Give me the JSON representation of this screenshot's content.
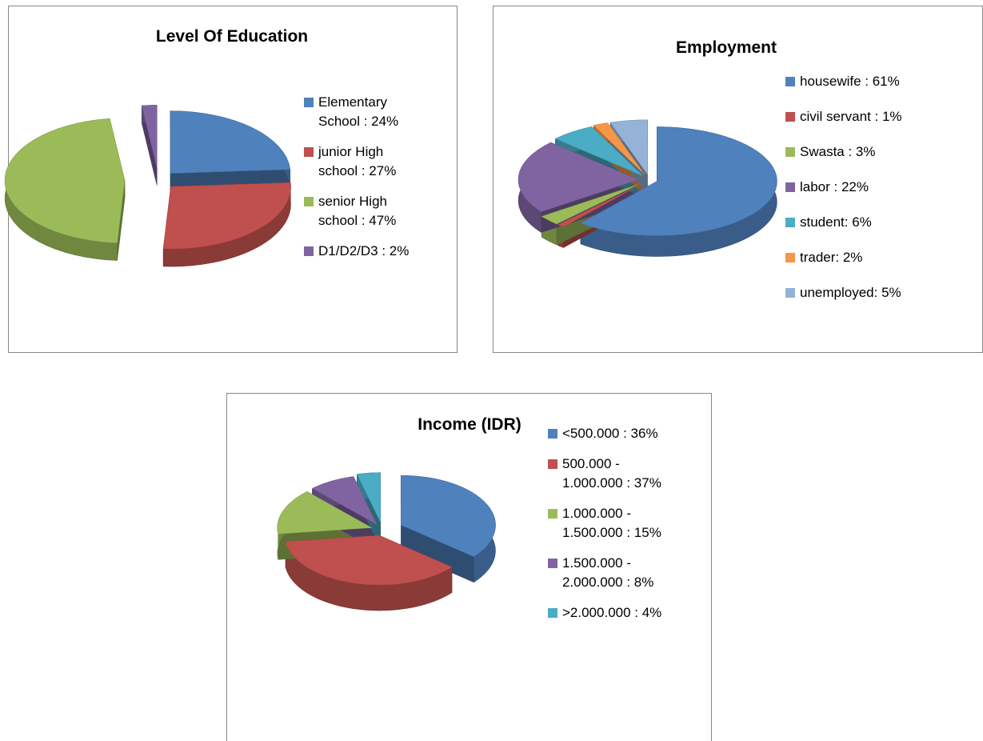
{
  "chart_data": [
    {
      "type": "pie",
      "title": "Level Of Education",
      "categories": [
        "Elementary School : 24%",
        "junior High school : 27%",
        "senior High school : 47%",
        "D1/D2/D3 : 2%"
      ],
      "values": [
        24,
        27,
        47,
        2
      ],
      "colors": [
        "#4f81bd",
        "#c0504d",
        "#9bbb59",
        "#8064a2"
      ],
      "legend": "right"
    },
    {
      "type": "pie",
      "title": "Employment",
      "categories": [
        "housewife : 61%",
        "civil servant : 1%",
        "Swasta : 3%",
        "labor : 22%",
        "student: 6%",
        "trader: 2%",
        "unemployed: 5%"
      ],
      "values": [
        61,
        1,
        3,
        22,
        6,
        2,
        5
      ],
      "colors": [
        "#4f81bd",
        "#c0504d",
        "#9bbb59",
        "#8064a2",
        "#4bacc6",
        "#f79646",
        "#95b3d7"
      ],
      "legend": "right"
    },
    {
      "type": "pie",
      "title": "Income (IDR)",
      "categories": [
        "<500.000 : 36%",
        "500.000 - 1.000.000 : 37%",
        "1.000.000 - 1.500.000 : 15%",
        "1.500.000 - 2.000.000 : 8%",
        ">2.000.000 : 4%"
      ],
      "values": [
        36,
        37,
        15,
        8,
        4
      ],
      "colors": [
        "#4f81bd",
        "#c0504d",
        "#9bbb59",
        "#8064a2",
        "#4bacc6"
      ],
      "legend": "right"
    }
  ]
}
